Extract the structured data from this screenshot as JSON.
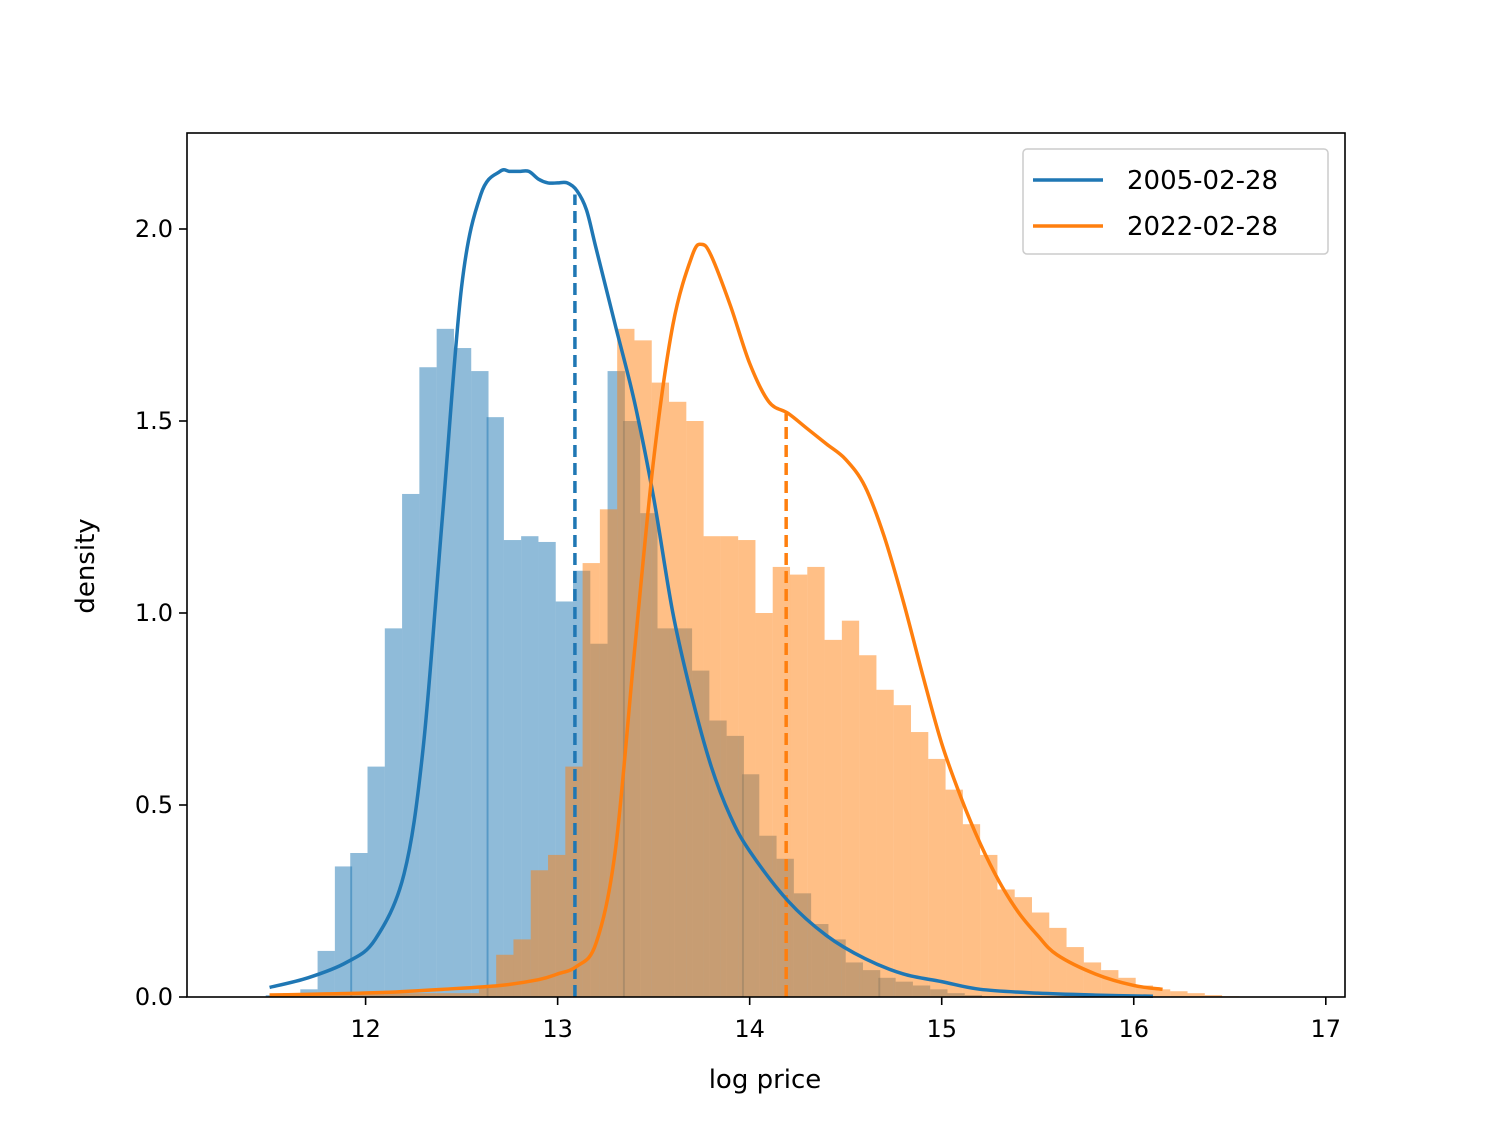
{
  "chart_data": {
    "type": "histogram",
    "xlabel": "log price",
    "ylabel": "density",
    "xlim": [
      11.07,
      17.1
    ],
    "ylim": [
      0,
      2.25
    ],
    "xticks": [
      "12",
      "13",
      "14",
      "15",
      "16",
      "17"
    ],
    "yticks": [
      "0.0",
      "0.5",
      "1.0",
      "1.5",
      "2.0"
    ],
    "legend": {
      "placement": "top-right",
      "entries": [
        "2005-02-28",
        "2022-02-28"
      ]
    },
    "series": [
      {
        "name": "2005-02-28",
        "color": "#1f77b4",
        "bar_color": "#8fbad9",
        "bin_width": 0.0885,
        "histogram": {
          "bin_starts": [
            11.48,
            11.57,
            11.66,
            11.75,
            11.84,
            11.92,
            12.01,
            12.1,
            12.19,
            12.28,
            12.37,
            12.46,
            12.55,
            12.63,
            12.72,
            12.81,
            12.9,
            12.99,
            13.08,
            13.17,
            13.26,
            13.34,
            13.43,
            13.52,
            13.61,
            13.7,
            13.79,
            13.88,
            13.96,
            14.05,
            14.14,
            14.23,
            14.32,
            14.41,
            14.5,
            14.59,
            14.67,
            14.76,
            14.85,
            14.94,
            15.03,
            15.12
          ],
          "densities": [
            0.005,
            0.01,
            0.02,
            0.12,
            0.34,
            0.375,
            0.6,
            0.96,
            1.31,
            1.64,
            1.74,
            1.69,
            1.63,
            1.51,
            1.19,
            1.2,
            1.185,
            1.03,
            1.11,
            0.92,
            1.63,
            1.5,
            1.26,
            0.96,
            0.96,
            0.85,
            0.72,
            0.68,
            0.58,
            0.42,
            0.36,
            0.27,
            0.19,
            0.15,
            0.09,
            0.07,
            0.05,
            0.04,
            0.03,
            0.02,
            0.01,
            0.005
          ]
        },
        "kde": {
          "x": [
            11.5,
            11.7,
            11.9,
            12.05,
            12.2,
            12.3,
            12.4,
            12.5,
            12.6,
            12.7,
            12.75,
            12.8,
            12.85,
            12.9,
            12.95,
            13.0,
            13.05,
            13.1,
            13.15,
            13.2,
            13.3,
            13.4,
            13.5,
            13.6,
            13.7,
            13.8,
            13.9,
            14.0,
            14.2,
            14.4,
            14.6,
            14.8,
            15.0,
            15.2,
            15.5,
            15.8,
            16.1
          ],
          "y": [
            0.025,
            0.05,
            0.09,
            0.15,
            0.32,
            0.65,
            1.25,
            1.85,
            2.09,
            2.15,
            2.15,
            2.15,
            2.15,
            2.13,
            2.12,
            2.12,
            2.12,
            2.1,
            2.05,
            1.95,
            1.75,
            1.55,
            1.3,
            1.0,
            0.78,
            0.6,
            0.47,
            0.38,
            0.25,
            0.16,
            0.1,
            0.06,
            0.04,
            0.02,
            0.01,
            0.005,
            0.002
          ]
        },
        "median": 13.09,
        "median_density": 2.09
      },
      {
        "name": "2022-02-28",
        "color": "#ff7f0e",
        "bar_color": "#ffbf86",
        "bin_width": 0.0885,
        "histogram": {
          "bin_starts": [
            11.5,
            11.6,
            11.69,
            11.78,
            11.87,
            11.96,
            12.05,
            12.14,
            12.23,
            12.32,
            12.41,
            12.5,
            12.59,
            12.68,
            12.77,
            12.86,
            12.95,
            13.04,
            13.13,
            13.22,
            13.31,
            13.4,
            13.49,
            13.58,
            13.67,
            13.76,
            13.85,
            13.94,
            14.03,
            14.12,
            14.21,
            14.3,
            14.39,
            14.48,
            14.57,
            14.66,
            14.75,
            14.84,
            14.93,
            15.02,
            15.11,
            15.2,
            15.29,
            15.38,
            15.47,
            15.56,
            15.65,
            15.74,
            15.83,
            15.92,
            16.01,
            16.1,
            16.19,
            16.28,
            16.37,
            16.46
          ],
          "densities": [
            0.01,
            0.01,
            0.01,
            0.01,
            0.01,
            0.01,
            0.01,
            0.01,
            0.01,
            0.01,
            0.01,
            0.01,
            0.03,
            0.11,
            0.15,
            0.33,
            0.37,
            0.6,
            1.13,
            1.27,
            1.74,
            1.71,
            1.6,
            1.55,
            1.5,
            1.2,
            1.2,
            1.19,
            1.0,
            1.12,
            1.1,
            1.12,
            0.93,
            0.98,
            0.89,
            0.8,
            0.76,
            0.69,
            0.62,
            0.54,
            0.45,
            0.37,
            0.28,
            0.26,
            0.22,
            0.18,
            0.13,
            0.09,
            0.07,
            0.05,
            0.03,
            0.02,
            0.015,
            0.01,
            0.005,
            0.002
          ]
        },
        "kde": {
          "x": [
            11.5,
            11.8,
            12.1,
            12.4,
            12.7,
            12.9,
            13.0,
            13.1,
            13.2,
            13.3,
            13.4,
            13.5,
            13.6,
            13.7,
            13.75,
            13.8,
            13.9,
            14.0,
            14.1,
            14.2,
            14.3,
            14.4,
            14.5,
            14.6,
            14.7,
            14.8,
            14.9,
            15.0,
            15.1,
            15.2,
            15.3,
            15.4,
            15.5,
            15.6,
            15.8,
            16.0,
            16.15
          ],
          "y": [
            0.005,
            0.008,
            0.012,
            0.02,
            0.03,
            0.045,
            0.06,
            0.08,
            0.14,
            0.38,
            0.9,
            1.4,
            1.75,
            1.93,
            1.96,
            1.93,
            1.8,
            1.65,
            1.55,
            1.52,
            1.48,
            1.44,
            1.4,
            1.33,
            1.2,
            1.03,
            0.84,
            0.66,
            0.52,
            0.4,
            0.3,
            0.22,
            0.16,
            0.11,
            0.06,
            0.03,
            0.02
          ]
        },
        "median": 14.19,
        "median_density": 1.52
      }
    ]
  }
}
